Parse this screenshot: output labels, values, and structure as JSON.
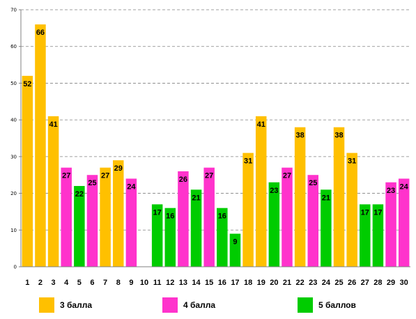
{
  "chart_data": {
    "type": "bar",
    "categories": [
      "1",
      "2",
      "3",
      "4",
      "5",
      "6",
      "7",
      "8",
      "9",
      "10",
      "11",
      "12",
      "13",
      "14",
      "15",
      "16",
      "17",
      "18",
      "19",
      "20",
      "21",
      "22",
      "23",
      "24",
      "25",
      "26",
      "27",
      "28",
      "29",
      "30"
    ],
    "values": [
      52,
      66,
      41,
      27,
      22,
      25,
      27,
      29,
      24,
      null,
      17,
      16,
      26,
      21,
      27,
      16,
      9,
      31,
      41,
      23,
      27,
      38,
      25,
      21,
      38,
      31,
      17,
      17,
      23,
      24
    ],
    "value_labels": [
      "52",
      "66",
      "41",
      "27",
      "22",
      "25",
      "27",
      "29",
      "24",
      "",
      "17",
      "16",
      "26",
      "21",
      "27",
      "16",
      "9",
      "31",
      "41",
      "23",
      "27",
      "38",
      "25",
      "21",
      "38",
      "31",
      "17",
      "17",
      "23",
      "24"
    ],
    "groups": [
      1,
      1,
      1,
      2,
      3,
      2,
      1,
      1,
      2,
      null,
      3,
      3,
      2,
      3,
      2,
      3,
      3,
      1,
      1,
      3,
      2,
      1,
      2,
      3,
      1,
      1,
      3,
      3,
      2,
      2
    ],
    "series": [
      {
        "name": "3 балла",
        "color": "#FFC000"
      },
      {
        "name": "4 балла",
        "color": "#FF33CC"
      },
      {
        "name": "5 баллов",
        "color": "#00CC00"
      }
    ],
    "yticks": [
      "0",
      "10",
      "20",
      "30",
      "40",
      "50",
      "60",
      "70"
    ],
    "ylim": [
      0,
      70
    ],
    "grid": true,
    "legend_position": "bottom"
  }
}
